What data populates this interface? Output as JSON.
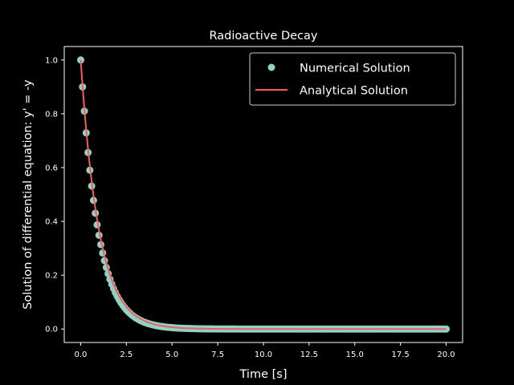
{
  "chart_data": {
    "type": "line",
    "title": "Radioactive Decay",
    "xlabel": "Time [s]",
    "ylabel": "Solution of differential equation: y' = -y",
    "xlim": [
      -0.9,
      20.9
    ],
    "ylim": [
      -0.05,
      1.05
    ],
    "xticks": [
      "0.0",
      "2.5",
      "5.0",
      "7.5",
      "10.0",
      "12.5",
      "15.0",
      "17.5",
      "20.0"
    ],
    "yticks": [
      "0.0",
      "0.2",
      "0.4",
      "0.6",
      "0.8",
      "1.0"
    ],
    "x_start": 0,
    "x_end": 20,
    "x_step": 0.1,
    "step_factor": 0.9,
    "series": [
      {
        "name": "Numerical Solution",
        "kind": "scatter",
        "color": "#8dd3c7",
        "formula": "0.9^n"
      },
      {
        "name": "Analytical Solution",
        "kind": "line",
        "color": "#fa5a5a",
        "formula": "exp(-t)"
      }
    ],
    "legend_position": "top-right",
    "grid": false
  },
  "colors": {
    "background": "#000000",
    "axes": "#ffffff"
  }
}
